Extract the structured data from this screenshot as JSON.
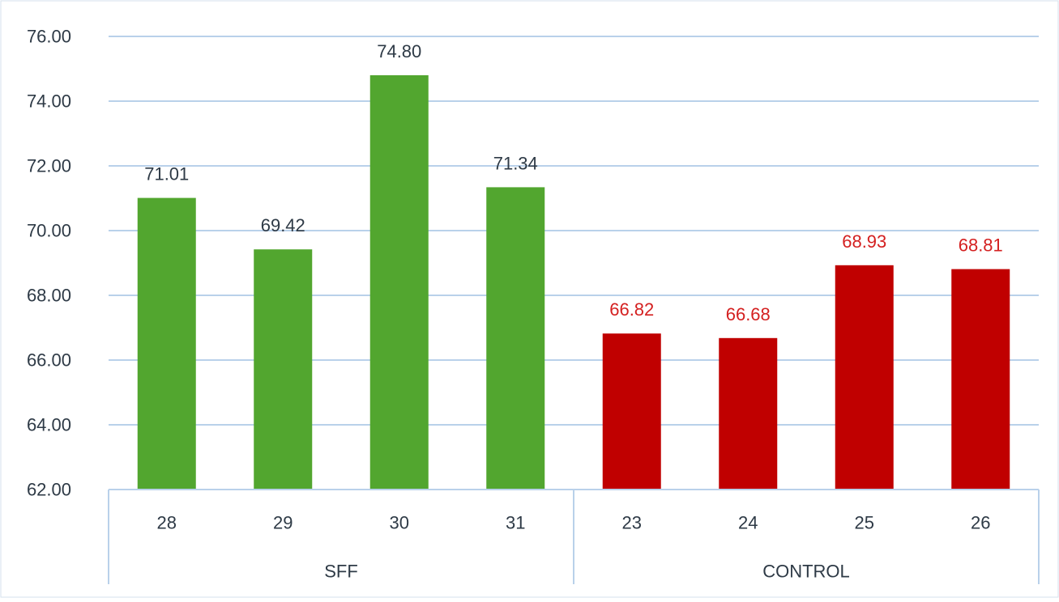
{
  "chart_data": {
    "type": "bar",
    "groups": [
      {
        "name": "SFF",
        "color": "#52a62f",
        "label_color": "#2e3a46",
        "categories": [
          "28",
          "29",
          "30",
          "31"
        ],
        "values": [
          71.01,
          69.42,
          74.8,
          71.34
        ],
        "value_labels": [
          "71.01",
          "69.42",
          "74.80",
          "71.34"
        ]
      },
      {
        "name": "CONTROL",
        "color": "#c00000",
        "label_color": "#d42020",
        "categories": [
          "23",
          "24",
          "25",
          "26"
        ],
        "values": [
          66.82,
          66.68,
          68.93,
          68.81
        ],
        "value_labels": [
          "66.82",
          "66.68",
          "68.93",
          "68.81"
        ]
      }
    ],
    "y_ticks": [
      "62.00",
      "64.00",
      "66.00",
      "68.00",
      "70.00",
      "72.00",
      "74.00",
      "76.00"
    ],
    "ylim": [
      62,
      76
    ],
    "grid": true,
    "gridline_color": "#b9d1ea",
    "axis_text_color": "#2e3a46"
  }
}
